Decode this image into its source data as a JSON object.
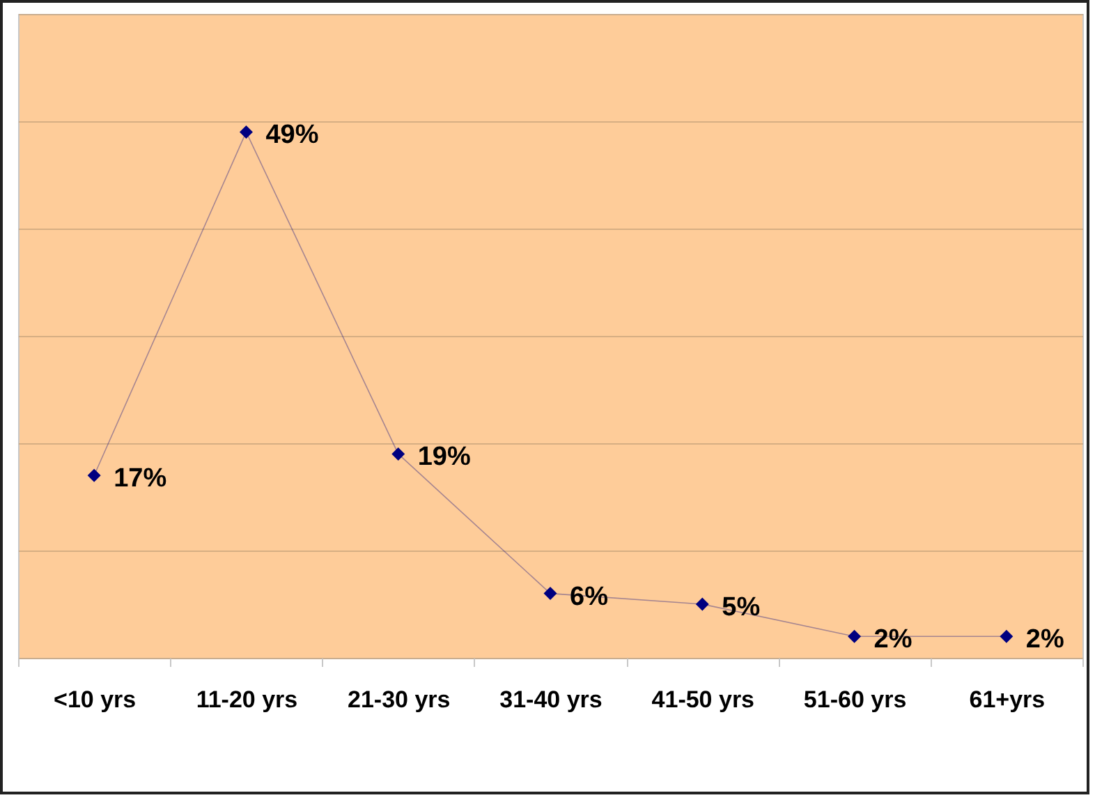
{
  "chart_data": {
    "type": "line",
    "categories": [
      "<10 yrs",
      "11-20 yrs",
      "21-30 yrs",
      "31-40 yrs",
      "41-50 yrs",
      "51-60 yrs",
      "61+yrs"
    ],
    "series": [
      {
        "color": "#000080",
        "values": [
          17,
          49,
          19,
          6,
          5,
          2,
          2
        ],
        "value_labels": [
          "17%",
          "49%",
          "19%",
          "6%",
          "5%",
          "2%",
          "2%"
        ]
      }
    ],
    "ylim": [
      0,
      60
    ],
    "yticks": [
      {
        "value": 0,
        "label": null
      },
      {
        "value": 10,
        "label": null
      },
      {
        "value": 20,
        "label": null
      },
      {
        "value": 30,
        "label": null
      },
      {
        "value": 40,
        "label": null
      },
      {
        "value": 50,
        "label": null
      },
      {
        "value": 60,
        "label": null
      }
    ],
    "grid": "y",
    "tick_labels": "x",
    "marker": "diamond",
    "line_style": "solid"
  }
}
